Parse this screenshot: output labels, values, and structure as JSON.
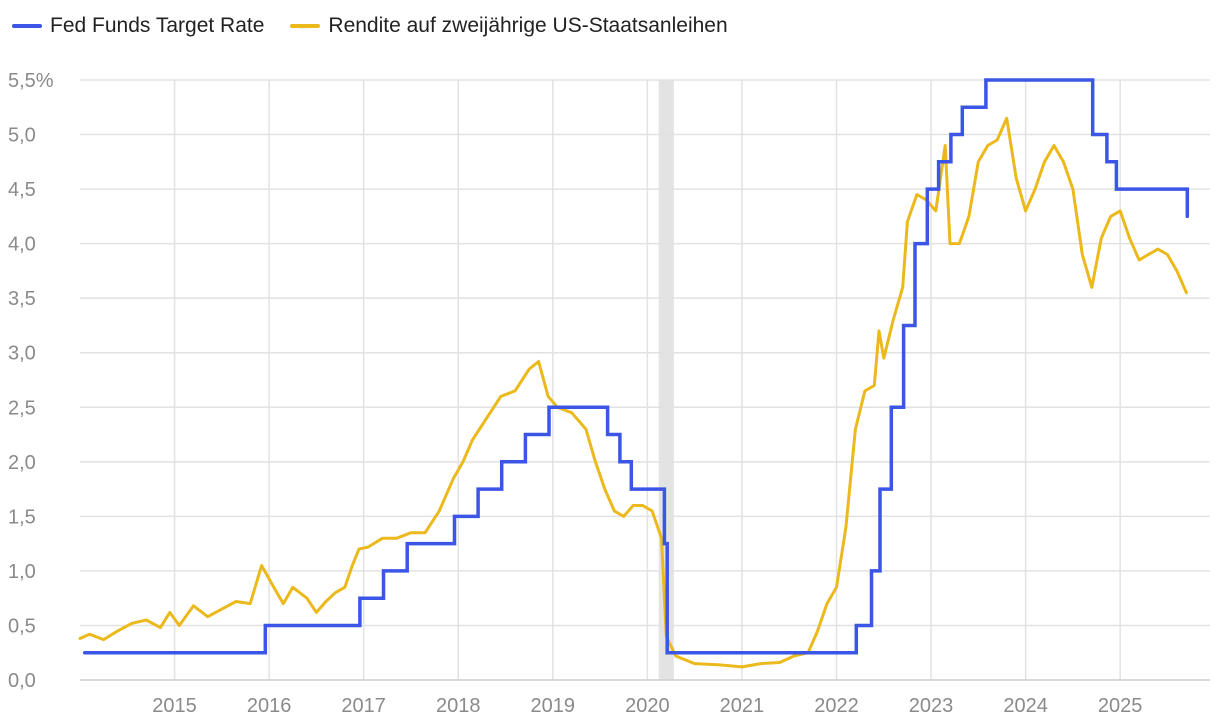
{
  "chart_data": {
    "type": "line",
    "title": "",
    "xlabel": "",
    "ylabel": "",
    "ylim": [
      0,
      5.5
    ],
    "xlim": [
      2014.0,
      2025.95
    ],
    "grid": true,
    "legend_position": "top-left",
    "y_ticks": [
      0,
      0.5,
      1.0,
      1.5,
      2.0,
      2.5,
      3.0,
      3.5,
      4.0,
      4.5,
      5.0,
      5.5
    ],
    "y_tick_labels": [
      "0,0",
      "0,5",
      "1,0",
      "1,5",
      "2,0",
      "2,5",
      "3,0",
      "3,5",
      "4,0",
      "4,5",
      "5,0",
      "5,5%"
    ],
    "x_ticks": [
      2015,
      2016,
      2017,
      2018,
      2019,
      2020,
      2021,
      2022,
      2023,
      2024,
      2025
    ],
    "x_tick_labels": [
      "2015",
      "2016",
      "2017",
      "2018",
      "2019",
      "2020",
      "2021",
      "2022",
      "2023",
      "2024",
      "2025"
    ],
    "shaded_periods": [
      {
        "start": 2020.12,
        "end": 2020.28,
        "color": "#e3e3e3"
      }
    ],
    "series": [
      {
        "name": "Fed Funds Target Rate",
        "color": "#3b55e6",
        "step": true,
        "points": [
          [
            2014.05,
            0.25
          ],
          [
            2015.96,
            0.25
          ],
          [
            2015.96,
            0.5
          ],
          [
            2016.96,
            0.5
          ],
          [
            2016.96,
            0.75
          ],
          [
            2017.21,
            0.75
          ],
          [
            2017.21,
            1.0
          ],
          [
            2017.46,
            1.0
          ],
          [
            2017.46,
            1.25
          ],
          [
            2017.96,
            1.25
          ],
          [
            2017.96,
            1.5
          ],
          [
            2018.21,
            1.5
          ],
          [
            2018.21,
            1.75
          ],
          [
            2018.46,
            1.75
          ],
          [
            2018.46,
            2.0
          ],
          [
            2018.71,
            2.0
          ],
          [
            2018.71,
            2.25
          ],
          [
            2018.96,
            2.25
          ],
          [
            2018.96,
            2.5
          ],
          [
            2019.58,
            2.5
          ],
          [
            2019.58,
            2.25
          ],
          [
            2019.71,
            2.25
          ],
          [
            2019.71,
            2.0
          ],
          [
            2019.83,
            2.0
          ],
          [
            2019.83,
            1.75
          ],
          [
            2020.18,
            1.75
          ],
          [
            2020.18,
            1.25
          ],
          [
            2020.21,
            1.25
          ],
          [
            2020.21,
            0.25
          ],
          [
            2022.21,
            0.25
          ],
          [
            2022.21,
            0.5
          ],
          [
            2022.37,
            0.5
          ],
          [
            2022.37,
            1.0
          ],
          [
            2022.46,
            1.0
          ],
          [
            2022.46,
            1.75
          ],
          [
            2022.58,
            1.75
          ],
          [
            2022.58,
            2.5
          ],
          [
            2022.71,
            2.5
          ],
          [
            2022.71,
            3.25
          ],
          [
            2022.83,
            3.25
          ],
          [
            2022.83,
            4.0
          ],
          [
            2022.96,
            4.0
          ],
          [
            2022.96,
            4.5
          ],
          [
            2023.08,
            4.5
          ],
          [
            2023.08,
            4.75
          ],
          [
            2023.21,
            4.75
          ],
          [
            2023.21,
            5.0
          ],
          [
            2023.33,
            5.0
          ],
          [
            2023.33,
            5.25
          ],
          [
            2023.58,
            5.25
          ],
          [
            2023.58,
            5.5
          ],
          [
            2024.71,
            5.5
          ],
          [
            2024.71,
            5.0
          ],
          [
            2024.86,
            5.0
          ],
          [
            2024.86,
            4.75
          ],
          [
            2024.96,
            4.75
          ],
          [
            2024.96,
            4.5
          ],
          [
            2025.71,
            4.5
          ],
          [
            2025.71,
            4.25
          ]
        ]
      },
      {
        "name": "Rendite auf zweijährige US-Staatsanleihen",
        "color": "#ecb91d",
        "step": false,
        "points": [
          [
            2014.0,
            0.38
          ],
          [
            2014.1,
            0.42
          ],
          [
            2014.25,
            0.37
          ],
          [
            2014.4,
            0.45
          ],
          [
            2014.55,
            0.52
          ],
          [
            2014.7,
            0.55
          ],
          [
            2014.85,
            0.48
          ],
          [
            2014.95,
            0.62
          ],
          [
            2015.05,
            0.5
          ],
          [
            2015.2,
            0.68
          ],
          [
            2015.35,
            0.58
          ],
          [
            2015.5,
            0.65
          ],
          [
            2015.65,
            0.72
          ],
          [
            2015.8,
            0.7
          ],
          [
            2015.92,
            1.05
          ],
          [
            2016.05,
            0.85
          ],
          [
            2016.15,
            0.7
          ],
          [
            2016.25,
            0.85
          ],
          [
            2016.4,
            0.75
          ],
          [
            2016.5,
            0.62
          ],
          [
            2016.6,
            0.72
          ],
          [
            2016.7,
            0.8
          ],
          [
            2016.8,
            0.85
          ],
          [
            2016.88,
            1.05
          ],
          [
            2016.95,
            1.2
          ],
          [
            2017.05,
            1.22
          ],
          [
            2017.2,
            1.3
          ],
          [
            2017.35,
            1.3
          ],
          [
            2017.5,
            1.35
          ],
          [
            2017.65,
            1.35
          ],
          [
            2017.8,
            1.55
          ],
          [
            2017.95,
            1.85
          ],
          [
            2018.05,
            2.0
          ],
          [
            2018.15,
            2.2
          ],
          [
            2018.3,
            2.4
          ],
          [
            2018.45,
            2.6
          ],
          [
            2018.6,
            2.65
          ],
          [
            2018.75,
            2.85
          ],
          [
            2018.85,
            2.92
          ],
          [
            2018.95,
            2.6
          ],
          [
            2019.05,
            2.5
          ],
          [
            2019.2,
            2.45
          ],
          [
            2019.35,
            2.3
          ],
          [
            2019.45,
            2.0
          ],
          [
            2019.55,
            1.75
          ],
          [
            2019.65,
            1.55
          ],
          [
            2019.75,
            1.5
          ],
          [
            2019.85,
            1.6
          ],
          [
            2019.95,
            1.6
          ],
          [
            2020.05,
            1.55
          ],
          [
            2020.15,
            1.3
          ],
          [
            2020.2,
            0.4
          ],
          [
            2020.3,
            0.22
          ],
          [
            2020.5,
            0.15
          ],
          [
            2020.75,
            0.14
          ],
          [
            2021.0,
            0.12
          ],
          [
            2021.2,
            0.15
          ],
          [
            2021.4,
            0.16
          ],
          [
            2021.55,
            0.22
          ],
          [
            2021.7,
            0.25
          ],
          [
            2021.8,
            0.45
          ],
          [
            2021.9,
            0.7
          ],
          [
            2022.0,
            0.85
          ],
          [
            2022.1,
            1.4
          ],
          [
            2022.2,
            2.3
          ],
          [
            2022.3,
            2.65
          ],
          [
            2022.4,
            2.7
          ],
          [
            2022.45,
            3.2
          ],
          [
            2022.5,
            2.95
          ],
          [
            2022.6,
            3.3
          ],
          [
            2022.7,
            3.6
          ],
          [
            2022.75,
            4.2
          ],
          [
            2022.85,
            4.45
          ],
          [
            2022.95,
            4.4
          ],
          [
            2023.05,
            4.3
          ],
          [
            2023.15,
            4.9
          ],
          [
            2023.2,
            4.0
          ],
          [
            2023.3,
            4.0
          ],
          [
            2023.4,
            4.25
          ],
          [
            2023.5,
            4.75
          ],
          [
            2023.6,
            4.9
          ],
          [
            2023.7,
            4.95
          ],
          [
            2023.8,
            5.15
          ],
          [
            2023.9,
            4.6
          ],
          [
            2024.0,
            4.3
          ],
          [
            2024.1,
            4.5
          ],
          [
            2024.2,
            4.75
          ],
          [
            2024.3,
            4.9
          ],
          [
            2024.4,
            4.75
          ],
          [
            2024.5,
            4.5
          ],
          [
            2024.6,
            3.9
          ],
          [
            2024.7,
            3.6
          ],
          [
            2024.8,
            4.05
          ],
          [
            2024.9,
            4.25
          ],
          [
            2025.0,
            4.3
          ],
          [
            2025.1,
            4.05
          ],
          [
            2025.2,
            3.85
          ],
          [
            2025.3,
            3.9
          ],
          [
            2025.4,
            3.95
          ],
          [
            2025.5,
            3.9
          ],
          [
            2025.6,
            3.75
          ],
          [
            2025.7,
            3.55
          ]
        ]
      }
    ]
  }
}
